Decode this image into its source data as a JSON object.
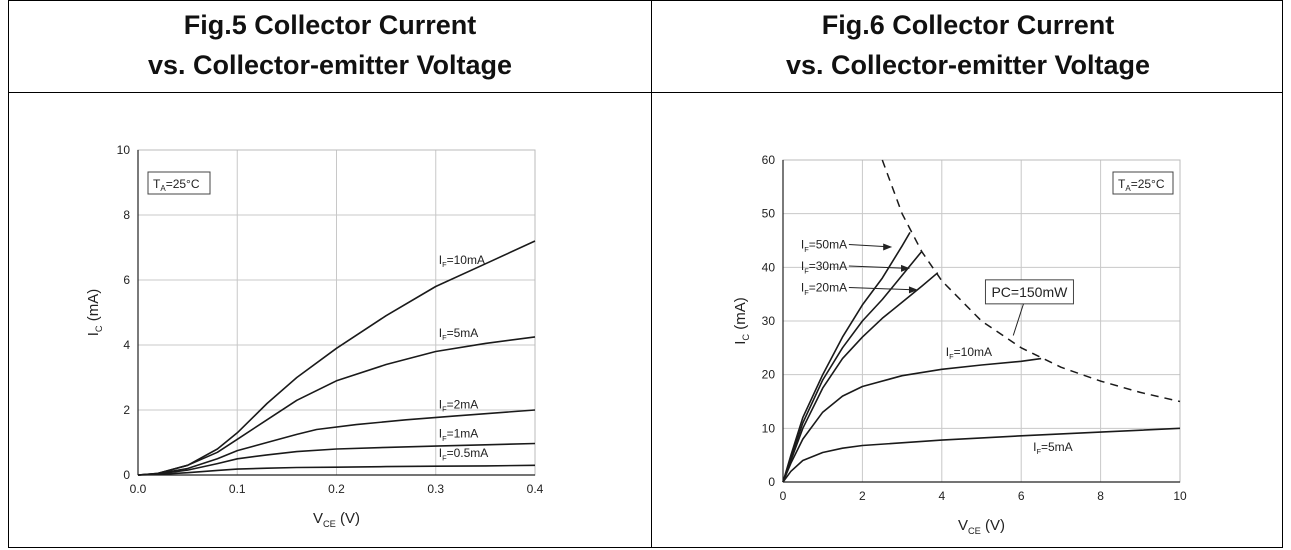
{
  "titles": {
    "fig5_line1": "Fig.5 Collector Current",
    "fig5_line2": "vs. Collector-emitter Voltage",
    "fig6_line1": "Fig.6 Collector Current",
    "fig6_line2": "vs. Collector-emitter Voltage"
  },
  "chart_data": [
    {
      "type": "line",
      "xlabel": "V_CE (V)",
      "ylabel": "I_C (mA)",
      "xlim": [
        0,
        0.4
      ],
      "ylim": [
        0,
        10
      ],
      "xticks": [
        0.0,
        0.1,
        0.2,
        0.3,
        0.4
      ],
      "xtick_labels": [
        "0.0",
        "0.1",
        "0.2",
        "0.3",
        "0.4"
      ],
      "yticks": [
        0,
        2,
        4,
        6,
        8,
        10
      ],
      "grid": true,
      "annotation": "T_A=25°C",
      "series": [
        {
          "name": "I_F=10mA",
          "x": [
            0,
            0.02,
            0.05,
            0.08,
            0.1,
            0.13,
            0.16,
            0.2,
            0.25,
            0.3,
            0.35,
            0.4
          ],
          "y": [
            0,
            0.05,
            0.3,
            0.8,
            1.3,
            2.2,
            3.0,
            3.9,
            4.9,
            5.8,
            6.5,
            7.2
          ]
        },
        {
          "name": "I_F=5mA",
          "x": [
            0,
            0.02,
            0.05,
            0.08,
            0.1,
            0.13,
            0.16,
            0.2,
            0.25,
            0.3,
            0.35,
            0.4
          ],
          "y": [
            0,
            0.05,
            0.3,
            0.7,
            1.1,
            1.7,
            2.3,
            2.9,
            3.4,
            3.8,
            4.05,
            4.25
          ]
        },
        {
          "name": "I_F=2mA",
          "x": [
            0,
            0.02,
            0.05,
            0.08,
            0.1,
            0.13,
            0.16,
            0.18,
            0.22,
            0.27,
            0.32,
            0.4
          ],
          "y": [
            0,
            0.04,
            0.2,
            0.5,
            0.75,
            1.0,
            1.25,
            1.4,
            1.55,
            1.7,
            1.82,
            2.0
          ]
        },
        {
          "name": "I_F=1mA",
          "x": [
            0,
            0.02,
            0.05,
            0.08,
            0.1,
            0.13,
            0.16,
            0.2,
            0.25,
            0.3,
            0.35,
            0.4
          ],
          "y": [
            0,
            0.03,
            0.15,
            0.35,
            0.5,
            0.62,
            0.72,
            0.8,
            0.85,
            0.89,
            0.93,
            0.97
          ]
        },
        {
          "name": "I_F=0.5mA",
          "x": [
            0,
            0.02,
            0.05,
            0.08,
            0.1,
            0.13,
            0.16,
            0.2,
            0.25,
            0.3,
            0.35,
            0.4
          ],
          "y": [
            0,
            0.02,
            0.07,
            0.14,
            0.18,
            0.21,
            0.23,
            0.24,
            0.26,
            0.27,
            0.28,
            0.3
          ]
        }
      ]
    },
    {
      "type": "line",
      "xlabel": "V_CE (V)",
      "ylabel": "I_C (mA)",
      "xlim": [
        0,
        10
      ],
      "ylim": [
        0,
        60
      ],
      "xticks": [
        0,
        2,
        4,
        6,
        8,
        10
      ],
      "yticks": [
        0,
        10,
        20,
        30,
        40,
        50,
        60
      ],
      "grid": true,
      "annotation": "T_A=25°C",
      "series": [
        {
          "name": "I_F=50mA",
          "x": [
            0,
            0.2,
            0.5,
            1,
            1.5,
            2,
            2.5,
            3,
            3.2
          ],
          "y": [
            0,
            5,
            12,
            20,
            27,
            33,
            38,
            44,
            46.5
          ]
        },
        {
          "name": "I_F=30mA",
          "x": [
            0,
            0.2,
            0.5,
            1,
            1.5,
            2,
            2.5,
            3,
            3.5
          ],
          "y": [
            0,
            4.5,
            11,
            19,
            25,
            30,
            34,
            38.5,
            43
          ]
        },
        {
          "name": "I_F=20mA",
          "x": [
            0,
            0.2,
            0.5,
            1,
            1.5,
            2,
            2.5,
            3,
            3.5,
            3.9
          ],
          "y": [
            0,
            4,
            10,
            17.5,
            23,
            27,
            30.5,
            33.5,
            36.5,
            39
          ]
        },
        {
          "name": "I_F=10mA",
          "x": [
            0,
            0.2,
            0.5,
            1,
            1.5,
            2,
            3,
            4,
            5,
            6,
            6.5
          ],
          "y": [
            0,
            3.5,
            8,
            13,
            16,
            17.8,
            19.8,
            21,
            21.8,
            22.5,
            23
          ]
        },
        {
          "name": "I_F=5mA",
          "x": [
            0,
            0.2,
            0.5,
            1,
            1.5,
            2,
            4,
            6,
            8,
            10
          ],
          "y": [
            0,
            2,
            4,
            5.5,
            6.3,
            6.8,
            7.8,
            8.6,
            9.3,
            10
          ]
        },
        {
          "name": "PC=150mW",
          "dashed": true,
          "x": [
            2.5,
            3,
            3.5,
            4,
            5,
            6,
            7,
            8,
            9,
            10
          ],
          "y": [
            60,
            50,
            42.9,
            37.5,
            30,
            25,
            21.4,
            18.8,
            16.7,
            15
          ]
        }
      ]
    }
  ]
}
